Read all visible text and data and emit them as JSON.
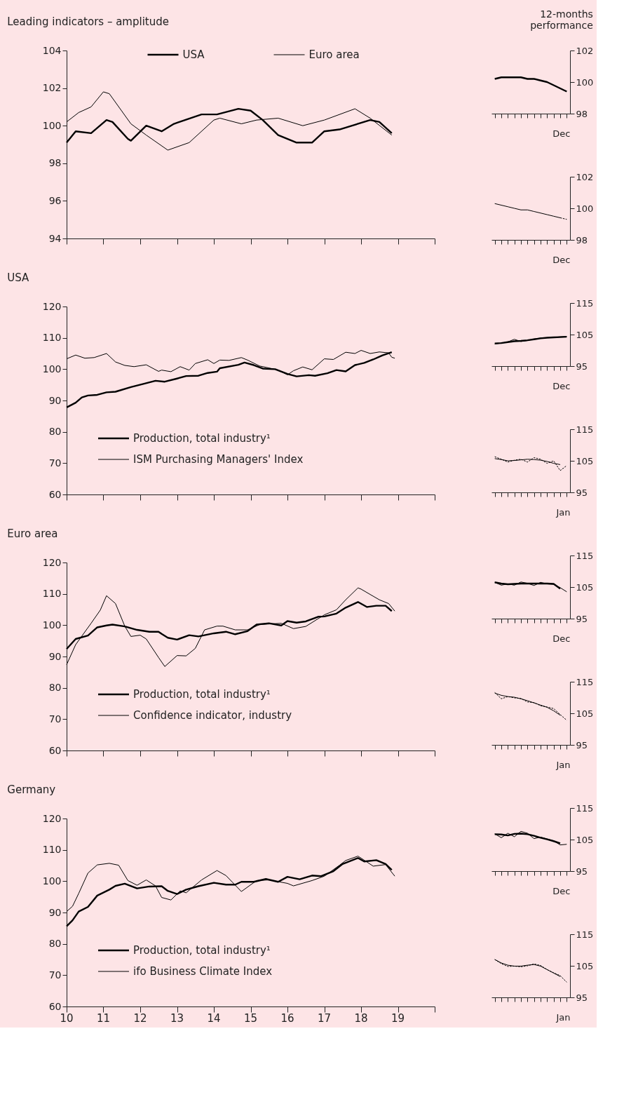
{
  "chart_data": [
    {
      "type": "line",
      "title": "Leading indicators – amplitude",
      "xlim": [
        "2010-01",
        "2020-01"
      ],
      "xticks": [
        {
          "value": "2010-01",
          "label": null
        },
        {
          "value": "2011-01",
          "label": null
        },
        {
          "value": "2012-01",
          "label": null
        },
        {
          "value": "2013-01",
          "label": null
        },
        {
          "value": "2014-01",
          "label": null
        },
        {
          "value": "2015-01",
          "label": null
        },
        {
          "value": "2016-01",
          "label": null
        },
        {
          "value": "2017-01",
          "label": null
        },
        {
          "value": "2018-01",
          "label": null
        },
        {
          "value": "2019-01",
          "label": null
        },
        {
          "value": "2020-01",
          "label": null
        }
      ],
      "ylim": [
        94,
        104
      ],
      "yticks": [
        94,
        96,
        98,
        100,
        102,
        104
      ],
      "tick_labels": "y",
      "legend": "top",
      "series": [
        {
          "name": "USA",
          "color": "#000000",
          "x": [
            "2010-01",
            "2010-04",
            "2010-09",
            "2011-02",
            "2011-04",
            "2011-09",
            "2011-10",
            "2012-03",
            "2012-08",
            "2012-12",
            "2013-09",
            "2014-02",
            "2014-09",
            "2015-01",
            "2015-05",
            "2015-10",
            "2016-04",
            "2016-09",
            "2017-01",
            "2017-06",
            "2018-04",
            "2018-07",
            "2018-11"
          ],
          "values": [
            99.1,
            99.7,
            99.6,
            100.3,
            100.2,
            99.3,
            99.2,
            100.0,
            99.7,
            100.1,
            100.6,
            100.6,
            100.9,
            100.8,
            100.3,
            99.5,
            99.1,
            99.1,
            99.7,
            99.8,
            100.3,
            100.2,
            99.6
          ]
        },
        {
          "name": "Euro area",
          "color": "#000000",
          "x": [
            "2010-01",
            "2010-05",
            "2010-09",
            "2011-01",
            "2011-03",
            "2011-10",
            "2012-03",
            "2012-10",
            "2013-05",
            "2014-01",
            "2014-03",
            "2014-10",
            "2015-03",
            "2015-10",
            "2016-06",
            "2017-01",
            "2017-11",
            "2018-04",
            "2018-11"
          ],
          "values": [
            100.2,
            100.7,
            101.0,
            101.8,
            101.7,
            100.1,
            99.5,
            98.7,
            99.1,
            100.3,
            100.4,
            100.1,
            100.3,
            100.4,
            100.0,
            100.3,
            100.9,
            100.4,
            99.5
          ]
        }
      ]
    },
    {
      "type": "line",
      "title": "12-months performance",
      "xlabel": "Dec",
      "categories": [
        null,
        null,
        null,
        null,
        null,
        null,
        null,
        null,
        null,
        null,
        null,
        null
      ],
      "ylim": [
        98,
        102
      ],
      "yticks": [
        98,
        100,
        102
      ],
      "tick_labels": "y",
      "series": [
        {
          "color": "#000000",
          "values": [
            100.2,
            100.3,
            100.3,
            100.3,
            100.3,
            100.2,
            100.2,
            100.1,
            100.0,
            99.8,
            99.6,
            99.4
          ]
        }
      ]
    },
    {
      "type": "line",
      "xlabel": "Dec",
      "categories": [
        null,
        null,
        null,
        null,
        null,
        null,
        null,
        null,
        null,
        null,
        null,
        null
      ],
      "ylim": [
        98,
        102
      ],
      "yticks": [
        98,
        100,
        102
      ],
      "tick_labels": "y",
      "series": [
        {
          "color": "#000000",
          "values": [
            100.3,
            100.2,
            100.1,
            100.0,
            99.9,
            99.9,
            99.8,
            99.7,
            99.6,
            99.5,
            99.4,
            null
          ]
        },
        {
          "color": "#000000",
          "line_style": "dashed",
          "values": [
            null,
            null,
            null,
            null,
            null,
            null,
            null,
            null,
            null,
            null,
            99.4,
            99.3
          ]
        }
      ]
    },
    {
      "type": "line",
      "title": "USA",
      "xlim": [
        "2010-01",
        "2020-01"
      ],
      "xticks": [
        {
          "value": "2010-01",
          "label": null
        },
        {
          "value": "2011-01",
          "label": null
        },
        {
          "value": "2012-01",
          "label": null
        },
        {
          "value": "2013-01",
          "label": null
        },
        {
          "value": "2014-01",
          "label": null
        },
        {
          "value": "2015-01",
          "label": null
        },
        {
          "value": "2016-01",
          "label": null
        },
        {
          "value": "2017-01",
          "label": null
        },
        {
          "value": "2018-01",
          "label": null
        },
        {
          "value": "2019-01",
          "label": null
        },
        {
          "value": "2020-01",
          "label": null
        }
      ],
      "ylim": [
        60,
        120
      ],
      "yticks": [
        60,
        70,
        80,
        90,
        100,
        110,
        120
      ],
      "tick_labels": "y",
      "legend": "bottom left",
      "series": [
        {
          "name": "Production, total industry¹",
          "color": "#000000",
          "x": [
            "2010-01",
            "2010-04",
            "2010-06",
            "2010-08",
            "2010-11",
            "2011-02",
            "2011-05",
            "2011-10",
            "2012-02",
            "2012-06",
            "2012-09",
            "2013-01",
            "2013-04",
            "2013-08",
            "2013-11",
            "2014-02",
            "2014-03",
            "2014-09",
            "2014-11",
            "2015-02",
            "2015-05",
            "2015-09",
            "2016-01",
            "2016-04",
            "2016-08",
            "2016-10",
            "2017-02",
            "2017-05",
            "2017-08",
            "2017-11",
            "2018-02",
            "2018-05",
            "2018-08",
            "2018-11"
          ],
          "values": [
            87.8,
            89.3,
            91.0,
            91.6,
            91.8,
            92.6,
            92.8,
            94.3,
            95.3,
            96.3,
            96.0,
            97.0,
            97.8,
            97.9,
            98.8,
            99.2,
            100.3,
            101.4,
            102.1,
            101.3,
            100.2,
            100.0,
            98.5,
            97.7,
            98.1,
            97.9,
            98.7,
            99.7,
            99.3,
            101.3,
            102.0,
            103.1,
            104.4,
            105.4
          ]
        },
        {
          "name": "ISM Purchasing Managers' Index",
          "color": "#000000",
          "x": [
            "2010-01",
            "2010-04",
            "2010-07",
            "2010-10",
            "2011-02",
            "2011-05",
            "2011-08",
            "2011-11",
            "2012-03",
            "2012-07",
            "2012-08",
            "2012-11",
            "2013-02",
            "2013-05",
            "2013-07",
            "2013-11",
            "2014-01",
            "2014-03",
            "2014-06",
            "2014-10",
            "2014-12",
            "2015-04",
            "2015-06",
            "2015-10",
            "2016-01",
            "2016-03",
            "2016-06",
            "2016-09",
            "2017-01",
            "2017-04",
            "2017-08",
            "2017-11",
            "2018-01",
            "2018-04",
            "2018-07",
            "2018-10",
            "2018-11",
            "2018-12"
          ],
          "values": [
            103.3,
            104.5,
            103.5,
            103.7,
            105.0,
            102.3,
            101.2,
            100.8,
            101.4,
            99.3,
            99.7,
            99.2,
            100.8,
            99.7,
            101.8,
            103.0,
            101.8,
            102.9,
            102.8,
            103.7,
            102.9,
            101.0,
            100.6,
            99.7,
            98.2,
            99.5,
            100.7,
            99.8,
            103.3,
            103.1,
            105.4,
            105.0,
            106.0,
            105.0,
            105.5,
            105.2,
            103.8,
            103.5
          ]
        }
      ]
    },
    {
      "type": "line",
      "xlabel": "Dec",
      "categories": [
        null,
        null,
        null,
        null,
        null,
        null,
        null,
        null,
        null,
        null,
        null,
        null
      ],
      "ylim": [
        95,
        115
      ],
      "yticks": [
        95,
        105,
        115
      ],
      "tick_labels": "y",
      "series": [
        {
          "color": "#000000",
          "values": [
            102.2,
            102.3,
            102.6,
            102.9,
            103.0,
            103.2,
            103.5,
            103.8,
            104.0,
            104.1,
            104.2,
            104.3
          ]
        },
        {
          "color": "#000000",
          "values": [
            102.0,
            102.3,
            102.7,
            103.5,
            102.8,
            103.1,
            103.6,
            103.9,
            104.0,
            104.1,
            104.3,
            104.4
          ]
        }
      ]
    },
    {
      "type": "line",
      "xlabel": "Jan",
      "categories": [
        null,
        null,
        null,
        null,
        null,
        null,
        null,
        null,
        null,
        null,
        null,
        null
      ],
      "ylim": [
        95,
        115
      ],
      "yticks": [
        95,
        105,
        115
      ],
      "tick_labels": "y",
      "series": [
        {
          "color": "#000000",
          "values": [
            105.7,
            105.4,
            105.0,
            105.1,
            105.3,
            105.5,
            105.4,
            105.2,
            104.8,
            104.2,
            103.8,
            null
          ]
        },
        {
          "color": "#000000",
          "line_style": "dashed",
          "values": [
            106.3,
            105.5,
            104.6,
            105.2,
            105.5,
            104.6,
            106.0,
            105.5,
            104.2,
            105.0,
            101.9,
            103.5
          ]
        }
      ]
    },
    {
      "type": "line",
      "title": "Euro area",
      "xlim": [
        "2010-01",
        "2020-01"
      ],
      "xticks": [
        {
          "value": "2010-01",
          "label": null
        },
        {
          "value": "2011-01",
          "label": null
        },
        {
          "value": "2012-01",
          "label": null
        },
        {
          "value": "2013-01",
          "label": null
        },
        {
          "value": "2014-01",
          "label": null
        },
        {
          "value": "2015-01",
          "label": null
        },
        {
          "value": "2016-01",
          "label": null
        },
        {
          "value": "2017-01",
          "label": null
        },
        {
          "value": "2018-01",
          "label": null
        },
        {
          "value": "2019-01",
          "label": null
        },
        {
          "value": "2020-01",
          "label": null
        }
      ],
      "ylim": [
        60,
        120
      ],
      "yticks": [
        60,
        70,
        80,
        90,
        100,
        110,
        120
      ],
      "tick_labels": "y",
      "legend": "bottom left",
      "series": [
        {
          "name": "Production, total industry¹",
          "color": "#000000",
          "x": [
            "2010-01",
            "2010-04",
            "2010-08",
            "2010-11",
            "2011-02",
            "2011-04",
            "2011-08",
            "2011-12",
            "2012-04",
            "2012-07",
            "2012-08",
            "2012-10",
            "2013-01",
            "2013-05",
            "2013-08",
            "2014-01",
            "2014-05",
            "2014-08",
            "2014-12",
            "2015-03",
            "2015-07",
            "2015-11",
            "2016-01",
            "2016-04",
            "2016-07",
            "2016-11",
            "2017-01",
            "2017-05",
            "2017-08",
            "2017-12",
            "2018-03",
            "2018-06",
            "2018-09",
            "2018-11"
          ],
          "values": [
            92.4,
            95.6,
            96.7,
            99.3,
            99.9,
            100.2,
            99.6,
            98.5,
            97.9,
            97.9,
            97.2,
            96.0,
            95.4,
            96.8,
            96.4,
            97.4,
            97.9,
            97.1,
            98.1,
            100.2,
            100.6,
            99.9,
            101.3,
            100.8,
            101.2,
            102.7,
            102.8,
            103.7,
            105.6,
            107.4,
            105.8,
            106.2,
            106.2,
            104.5
          ]
        },
        {
          "name": "Confidence indicator, industry",
          "color": "#000000",
          "x": [
            "2010-01",
            "2010-04",
            "2010-09",
            "2010-12",
            "2011-02",
            "2011-05",
            "2011-08",
            "2011-10",
            "2012-01",
            "2012-03",
            "2012-07",
            "2012-09",
            "2013-01",
            "2013-04",
            "2013-07",
            "2013-10",
            "2014-02",
            "2014-04",
            "2014-08",
            "2014-12",
            "2015-04",
            "2015-11",
            "2016-03",
            "2016-07",
            "2017-01",
            "2017-05",
            "2017-08",
            "2017-12",
            "2018-01",
            "2018-04",
            "2018-07",
            "2018-10",
            "2018-12"
          ],
          "values": [
            87.4,
            93.8,
            100.6,
            104.8,
            109.4,
            106.9,
            99.7,
            96.4,
            96.8,
            95.6,
            89.7,
            86.8,
            90.3,
            90.2,
            92.6,
            98.5,
            99.7,
            99.7,
            98.5,
            98.5,
            100.2,
            100.6,
            98.9,
            99.6,
            103.3,
            104.9,
            108.1,
            111.9,
            111.5,
            109.8,
            108.1,
            106.9,
            104.5
          ]
        }
      ]
    },
    {
      "type": "line",
      "xlabel": "Dec",
      "categories": [
        null,
        null,
        null,
        null,
        null,
        null,
        null,
        null,
        null,
        null,
        null,
        null
      ],
      "ylim": [
        95,
        115
      ],
      "yticks": [
        95,
        105,
        115
      ],
      "tick_labels": "y",
      "series": [
        {
          "color": "#000000",
          "values": [
            106.5,
            106.1,
            105.9,
            106.0,
            106.1,
            106.1,
            106.1,
            106.1,
            106.1,
            106.0,
            104.5,
            null
          ]
        },
        {
          "color": "#000000",
          "values": [
            106.5,
            105.6,
            106.0,
            105.6,
            106.6,
            106.2,
            105.5,
            106.5,
            106.0,
            105.9,
            104.8,
            103.5
          ]
        }
      ]
    },
    {
      "type": "line",
      "xlabel": "Jan",
      "categories": [
        null,
        null,
        null,
        null,
        null,
        null,
        null,
        null,
        null,
        null,
        null,
        null
      ],
      "ylim": [
        95,
        115
      ],
      "yticks": [
        95,
        105,
        115
      ],
      "tick_labels": "y",
      "series": [
        {
          "color": "#000000",
          "values": [
            111.4,
            110.7,
            110.3,
            110.1,
            109.6,
            109.0,
            108.3,
            107.6,
            106.9,
            105.8,
            104.4,
            null
          ]
        },
        {
          "color": "#000000",
          "line_style": "dashed",
          "values": [
            111.6,
            109.6,
            110.3,
            109.9,
            109.7,
            108.6,
            108.4,
            107.4,
            107.0,
            106.5,
            104.6,
            102.8
          ]
        }
      ]
    },
    {
      "type": "line",
      "title": "Germany",
      "xlim": [
        "2010-01",
        "2020-01"
      ],
      "xticks": [
        {
          "value": "2010-01",
          "label": "10"
        },
        {
          "value": "2011-01",
          "label": "11"
        },
        {
          "value": "2012-01",
          "label": "12"
        },
        {
          "value": "2013-01",
          "label": "13"
        },
        {
          "value": "2014-01",
          "label": "14"
        },
        {
          "value": "2015-01",
          "label": "15"
        },
        {
          "value": "2016-01",
          "label": "16"
        },
        {
          "value": "2017-01",
          "label": "17"
        },
        {
          "value": "2018-01",
          "label": "18"
        },
        {
          "value": "2019-01",
          "label": "19"
        },
        {
          "value": "2020-01",
          "label": null
        }
      ],
      "ylim": [
        60,
        120
      ],
      "yticks": [
        60,
        70,
        80,
        90,
        100,
        110,
        120
      ],
      "legend": "bottom left",
      "series": [
        {
          "name": "Production, total industry¹",
          "color": "#000000",
          "x": [
            "2010-01",
            "2010-03",
            "2010-05",
            "2010-08",
            "2010-11",
            "2011-03",
            "2011-05",
            "2011-08",
            "2011-12",
            "2012-04",
            "2012-08",
            "2012-10",
            "2013-01",
            "2013-04",
            "2013-08",
            "2014-01",
            "2014-05",
            "2014-08",
            "2014-10",
            "2015-02",
            "2015-06",
            "2015-10",
            "2016-01",
            "2016-05",
            "2016-09",
            "2016-12",
            "2017-04",
            "2017-07",
            "2017-12",
            "2018-02",
            "2018-06",
            "2018-09",
            "2018-11"
          ],
          "values": [
            85.6,
            87.5,
            90.3,
            91.8,
            95.4,
            97.3,
            98.5,
            99.2,
            97.7,
            98.3,
            98.4,
            96.9,
            95.9,
            97.3,
            98.4,
            99.5,
            98.9,
            98.9,
            99.8,
            99.8,
            100.7,
            99.8,
            101.4,
            100.6,
            101.8,
            101.6,
            103.2,
            105.5,
            107.4,
            106.3,
            106.7,
            105.5,
            103.6
          ]
        },
        {
          "name": "ifo Business Climate Index",
          "color": "#000000",
          "x": [
            "2010-01",
            "2010-03",
            "2010-05",
            "2010-08",
            "2010-11",
            "2011-03",
            "2011-06",
            "2011-09",
            "2011-12",
            "2012-03",
            "2012-06",
            "2012-08",
            "2012-11",
            "2013-02",
            "2013-04",
            "2013-09",
            "2014-02",
            "2014-05",
            "2014-10",
            "2015-03",
            "2015-07",
            "2016-01",
            "2016-03",
            "2016-09",
            "2017-01",
            "2017-06",
            "2017-08",
            "2017-12",
            "2018-05",
            "2018-09",
            "2018-12"
          ],
          "values": [
            90.3,
            92.0,
            96.1,
            102.6,
            105.2,
            105.7,
            105.1,
            100.2,
            98.7,
            100.4,
            98.5,
            94.8,
            94.0,
            96.9,
            96.3,
            100.4,
            103.4,
            101.8,
            96.7,
            100.2,
            100.4,
            99.3,
            98.5,
            100.2,
            101.6,
            105.1,
            106.6,
            108.0,
            104.8,
            105.3,
            101.6
          ]
        }
      ]
    },
    {
      "type": "line",
      "xlabel": "Dec",
      "categories": [
        null,
        null,
        null,
        null,
        null,
        null,
        null,
        null,
        null,
        null,
        null,
        null
      ],
      "ylim": [
        95,
        115
      ],
      "yticks": [
        95,
        105,
        115
      ],
      "tick_labels": "y",
      "series": [
        {
          "color": "#000000",
          "values": [
            106.7,
            106.6,
            106.3,
            106.8,
            106.9,
            106.7,
            106.2,
            105.6,
            105.1,
            104.5,
            103.8,
            null
          ]
        },
        {
          "color": "#000000",
          "values": [
            106.8,
            105.6,
            107.0,
            105.9,
            107.6,
            107.0,
            105.3,
            105.8,
            105.2,
            104.6,
            103.3,
            103.5
          ]
        }
      ]
    },
    {
      "type": "line",
      "xlabel": "Jan",
      "categories": [
        null,
        null,
        null,
        null,
        null,
        null,
        null,
        null,
        null,
        null,
        null,
        null
      ],
      "ylim": [
        95,
        115
      ],
      "yticks": [
        95,
        105,
        115
      ],
      "tick_labels": "y",
      "series": [
        {
          "color": "#000000",
          "values": [
            107.0,
            105.9,
            105.2,
            104.9,
            104.9,
            105.2,
            105.4,
            104.9,
            103.8,
            102.7,
            101.6,
            null
          ]
        },
        {
          "color": "#000000",
          "line_style": "dashed",
          "values": [
            107.0,
            105.7,
            104.8,
            104.9,
            104.7,
            105.0,
            105.6,
            105.1,
            103.8,
            102.8,
            101.9,
            99.8
          ]
        }
      ]
    }
  ]
}
